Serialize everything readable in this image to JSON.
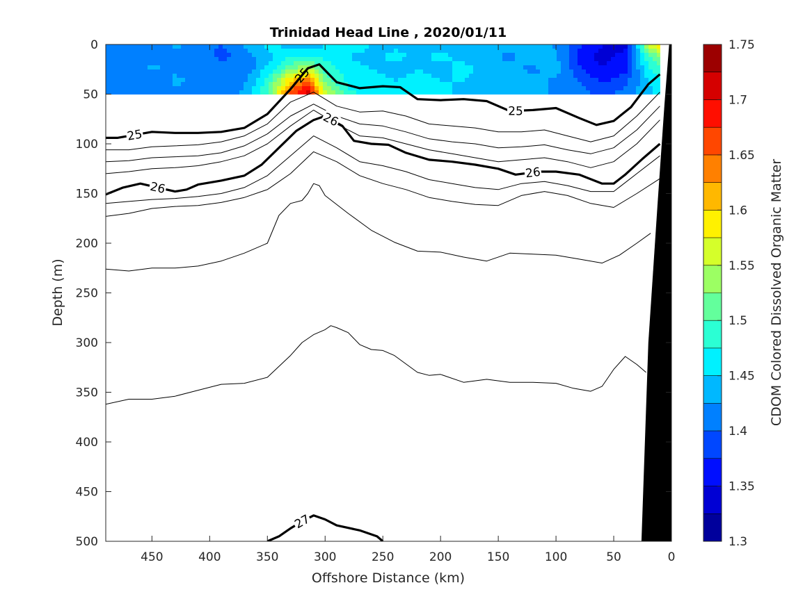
{
  "chart_data": {
    "type": "contour section",
    "title": "Trinidad Head Line , 2020/01/11",
    "xlabel": "Offshore Distance (km)",
    "ylabel": "Depth (m)",
    "x_reversed": true,
    "y_reversed": true,
    "xlim": [
      0,
      490
    ],
    "ylim": [
      0,
      500
    ],
    "xticks": [
      450,
      400,
      350,
      300,
      250,
      200,
      150,
      100,
      50,
      0
    ],
    "yticks": [
      0,
      50,
      100,
      150,
      200,
      250,
      300,
      350,
      400,
      450,
      500
    ],
    "colorbar": {
      "label": "CDOM Colored Dissolved Organic Matter",
      "min": 1.3,
      "max": 1.75,
      "step": 0.025,
      "ticks": [
        "1.3",
        "1.35",
        "1.4",
        "1.45",
        "1.5",
        "1.55",
        "1.6",
        "1.65",
        "1.7",
        "1.75"
      ],
      "colormap": "jet"
    },
    "cdom_field": {
      "depth_range": [
        0,
        50
      ],
      "x": [
        490,
        470,
        450,
        430,
        410,
        390,
        370,
        350,
        330,
        315,
        300,
        280,
        260,
        240,
        220,
        200,
        180,
        160,
        140,
        120,
        100,
        80,
        60,
        40,
        20,
        10
      ],
      "depth": [
        0,
        12,
        25,
        37,
        50
      ],
      "values": [
        [
          1.41,
          1.42,
          1.4,
          1.43,
          1.41,
          1.4,
          1.43,
          1.46,
          1.44,
          1.43,
          1.45,
          1.47,
          1.45,
          1.44,
          1.45,
          1.43,
          1.45,
          1.44,
          1.44,
          1.45,
          1.42,
          1.38,
          1.35,
          1.34,
          1.56,
          1.6
        ],
        [
          1.42,
          1.4,
          1.41,
          1.42,
          1.42,
          1.39,
          1.41,
          1.44,
          1.47,
          1.48,
          1.47,
          1.45,
          1.44,
          1.46,
          1.44,
          1.46,
          1.44,
          1.43,
          1.42,
          1.44,
          1.43,
          1.37,
          1.34,
          1.36,
          1.5,
          1.53
        ],
        [
          1.4,
          1.41,
          1.43,
          1.42,
          1.41,
          1.42,
          1.4,
          1.46,
          1.52,
          1.55,
          1.49,
          1.46,
          1.45,
          1.44,
          1.45,
          1.44,
          1.46,
          1.44,
          1.43,
          1.42,
          1.44,
          1.38,
          1.35,
          1.37,
          1.47,
          1.49
        ],
        [
          1.42,
          1.41,
          1.4,
          1.43,
          1.42,
          1.4,
          1.42,
          1.48,
          1.6,
          1.66,
          1.52,
          1.47,
          1.46,
          1.45,
          1.46,
          1.45,
          1.45,
          1.43,
          1.44,
          1.43,
          1.42,
          1.4,
          1.37,
          1.39,
          1.45,
          1.47
        ],
        [
          1.41,
          1.42,
          1.41,
          1.42,
          1.41,
          1.41,
          1.43,
          1.5,
          1.66,
          1.72,
          1.56,
          1.48,
          1.47,
          1.46,
          1.45,
          1.46,
          1.44,
          1.44,
          1.43,
          1.44,
          1.42,
          1.41,
          1.39,
          1.41,
          1.44,
          1.46
        ]
      ]
    },
    "density_contours": [
      {
        "label": "25",
        "labels_at_x": [
          465,
          320,
          135
        ],
        "bold": true,
        "x": [
          490,
          480,
          470,
          450,
          430,
          410,
          390,
          370,
          350,
          330,
          315,
          305,
          290,
          270,
          250,
          235,
          220,
          200,
          180,
          160,
          140,
          120,
          100,
          80,
          65,
          50,
          35,
          20,
          10
        ],
        "y": [
          94,
          94,
          92,
          88,
          89,
          89,
          88,
          84,
          70,
          45,
          24,
          20,
          38,
          44,
          42,
          43,
          55,
          56,
          55,
          57,
          67,
          66,
          64,
          74,
          81,
          77,
          63,
          40,
          30
        ]
      },
      {
        "label": "",
        "bold": false,
        "x": [
          490,
          470,
          450,
          430,
          410,
          390,
          370,
          350,
          330,
          310,
          290,
          270,
          250,
          230,
          210,
          190,
          170,
          150,
          130,
          110,
          90,
          70,
          50,
          30,
          10
        ],
        "y": [
          106,
          106,
          103,
          102,
          101,
          98,
          92,
          80,
          58,
          48,
          62,
          68,
          67,
          72,
          80,
          82,
          84,
          88,
          88,
          86,
          92,
          98,
          92,
          72,
          48
        ]
      },
      {
        "label": "",
        "bold": false,
        "x": [
          490,
          470,
          450,
          430,
          410,
          390,
          370,
          350,
          330,
          310,
          290,
          270,
          250,
          230,
          210,
          190,
          170,
          150,
          130,
          110,
          90,
          70,
          50,
          30,
          10
        ],
        "y": [
          118,
          117,
          114,
          113,
          112,
          109,
          102,
          90,
          72,
          60,
          72,
          80,
          82,
          88,
          95,
          98,
          100,
          104,
          103,
          101,
          106,
          110,
          104,
          86,
          62
        ]
      },
      {
        "label": "",
        "bold": false,
        "x": [
          490,
          470,
          450,
          430,
          410,
          390,
          370,
          350,
          330,
          310,
          290,
          270,
          250,
          230,
          210,
          190,
          170,
          150,
          130,
          110,
          90,
          70,
          50,
          30,
          10
        ],
        "y": [
          130,
          128,
          125,
          124,
          122,
          118,
          112,
          100,
          82,
          66,
          80,
          92,
          94,
          100,
          106,
          110,
          114,
          118,
          116,
          114,
          118,
          124,
          118,
          100,
          76
        ]
      },
      {
        "label": "26",
        "labels_at_x": [
          445,
          295,
          120
        ],
        "bold": true,
        "x": [
          490,
          475,
          460,
          445,
          430,
          420,
          410,
          390,
          370,
          355,
          340,
          325,
          310,
          300,
          285,
          275,
          260,
          245,
          230,
          210,
          190,
          170,
          150,
          135,
          115,
          100,
          80,
          60,
          50,
          40,
          25,
          10
        ],
        "y": [
          151,
          144,
          140,
          144,
          148,
          146,
          141,
          137,
          132,
          121,
          104,
          87,
          76,
          72,
          82,
          97,
          100,
          101,
          109,
          116,
          118,
          121,
          125,
          131,
          128,
          128,
          131,
          140,
          140,
          131,
          115,
          100
        ]
      },
      {
        "label": "",
        "bold": false,
        "x": [
          490,
          470,
          450,
          430,
          410,
          390,
          370,
          350,
          330,
          310,
          290,
          270,
          250,
          230,
          210,
          190,
          170,
          150,
          130,
          110,
          90,
          70,
          50,
          30,
          10
        ],
        "y": [
          160,
          158,
          156,
          155,
          153,
          150,
          144,
          132,
          112,
          92,
          104,
          118,
          122,
          128,
          136,
          140,
          144,
          146,
          140,
          138,
          142,
          148,
          148,
          130,
          112
        ]
      },
      {
        "label": "",
        "bold": false,
        "x": [
          490,
          470,
          450,
          430,
          410,
          390,
          370,
          350,
          330,
          310,
          290,
          270,
          250,
          230,
          210,
          190,
          170,
          150,
          130,
          110,
          90,
          70,
          50,
          30,
          10
        ],
        "y": [
          173,
          170,
          165,
          163,
          162,
          159,
          154,
          146,
          130,
          108,
          118,
          132,
          140,
          146,
          154,
          158,
          161,
          162,
          152,
          148,
          152,
          160,
          164,
          150,
          135
        ]
      },
      {
        "label": "",
        "bold": false,
        "x": [
          490,
          470,
          450,
          430,
          410,
          390,
          370,
          350,
          340,
          330,
          320,
          315,
          310,
          305,
          300,
          280,
          260,
          240,
          220,
          200,
          180,
          160,
          140,
          120,
          100,
          80,
          60,
          45,
          30,
          18
        ],
        "y": [
          226,
          228,
          225,
          225,
          223,
          218,
          210,
          200,
          172,
          160,
          157,
          150,
          140,
          142,
          152,
          170,
          187,
          199,
          208,
          209,
          214,
          218,
          210,
          211,
          212,
          216,
          220,
          212,
          200,
          190
        ]
      },
      {
        "label": "",
        "bold": false,
        "x": [
          490,
          470,
          450,
          430,
          410,
          390,
          370,
          350,
          330,
          320,
          310,
          300,
          295,
          290,
          280,
          270,
          260,
          250,
          240,
          220,
          210,
          200,
          180,
          160,
          140,
          120,
          100,
          85,
          70,
          60,
          50,
          40,
          30,
          22
        ],
        "y": [
          362,
          357,
          357,
          354,
          348,
          342,
          341,
          335,
          313,
          300,
          292,
          287,
          283,
          285,
          290,
          302,
          307,
          308,
          313,
          330,
          333,
          332,
          340,
          337,
          340,
          340,
          341,
          346,
          349,
          344,
          327,
          314,
          322,
          330
        ]
      },
      {
        "label": "27",
        "labels_at_x": [
          320
        ],
        "bold": true,
        "x": [
          350,
          340,
          330,
          320,
          310,
          300,
          290,
          270,
          255,
          250
        ],
        "y": [
          500,
          495,
          487,
          480,
          474,
          478,
          484,
          489,
          495,
          500
        ]
      }
    ],
    "shelf_mask": {
      "color": "#000000",
      "polygon_x": [
        0,
        0,
        26,
        20,
        12,
        6,
        2
      ],
      "polygon_y": [
        0,
        500,
        500,
        300,
        160,
        60,
        0
      ]
    }
  }
}
